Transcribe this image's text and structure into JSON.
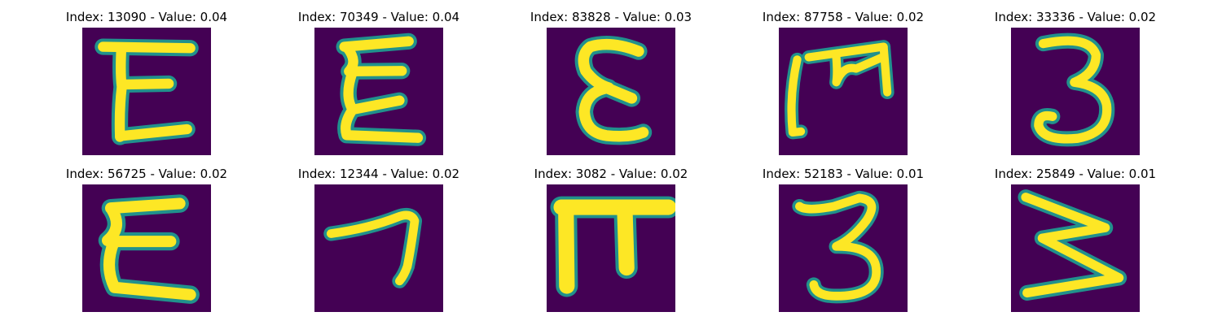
{
  "colors": {
    "background": "#440154",
    "stroke_edge": "#21918c",
    "stroke_core": "#fde725"
  },
  "panels": [
    {
      "title": "Index: 13090 - Value: 0.04",
      "glyph": "E-like-handwritten-digit"
    },
    {
      "title": "Index: 70349 - Value: 0.04",
      "glyph": "E-like-handwritten-digit"
    },
    {
      "title": "Index: 83828 - Value: 0.03",
      "glyph": "epsilon-like-handwritten-digit"
    },
    {
      "title": "Index: 87758 - Value: 0.02",
      "glyph": "m-like-handwritten-digit"
    },
    {
      "title": "Index: 33336 - Value: 0.02",
      "glyph": "3-handwritten-digit"
    },
    {
      "title": "Index: 56725 - Value: 0.02",
      "glyph": "E-like-handwritten-digit"
    },
    {
      "title": "Index: 12344 - Value: 0.02",
      "glyph": "7-like-handwritten-digit"
    },
    {
      "title": "Index: 3082 - Value: 0.02",
      "glyph": "pi-like-handwritten-digit"
    },
    {
      "title": "Index: 52183 - Value: 0.01",
      "glyph": "3-handwritten-digit"
    },
    {
      "title": "Index: 25849 - Value: 0.01",
      "glyph": "sideways-m-handwritten-digit"
    }
  ]
}
